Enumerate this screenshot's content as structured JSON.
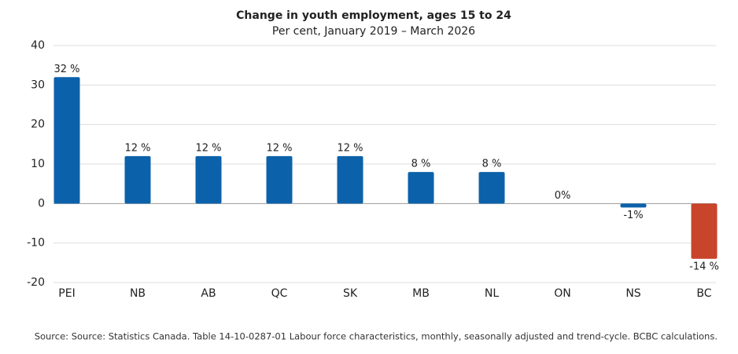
{
  "chart_data": {
    "type": "bar",
    "title": "Change in youth employment, ages 15 to 24",
    "subtitle": "Per cent, January 2019 – March 2026",
    "categories": [
      "PEI",
      "NB",
      "AB",
      "QC",
      "SK",
      "MB",
      "NL",
      "ON",
      "NS",
      "BC"
    ],
    "values": [
      32,
      12,
      12,
      12,
      12,
      8,
      8,
      0,
      -1,
      -14
    ],
    "value_labels": [
      "32 %",
      "12 %",
      "12 %",
      "12 %",
      "12 %",
      "8 %",
      "8 %",
      "0%",
      "-1%",
      "-14 %"
    ],
    "colors": [
      "#0b62ab",
      "#0b62ab",
      "#0b62ab",
      "#0b62ab",
      "#0b62ab",
      "#0b62ab",
      "#0b62ab",
      "#0b62ab",
      "#0b62ab",
      "#c8442b"
    ],
    "ylim": [
      -20,
      40
    ],
    "yticks": [
      -20,
      -10,
      0,
      10,
      20,
      30,
      40
    ],
    "grid": true,
    "source": "Source: Source: Statistics Canada. Table 14-10-0287-01 Labour force characteristics, monthly, seasonally adjusted and trend-cycle. BCBC calculations."
  }
}
